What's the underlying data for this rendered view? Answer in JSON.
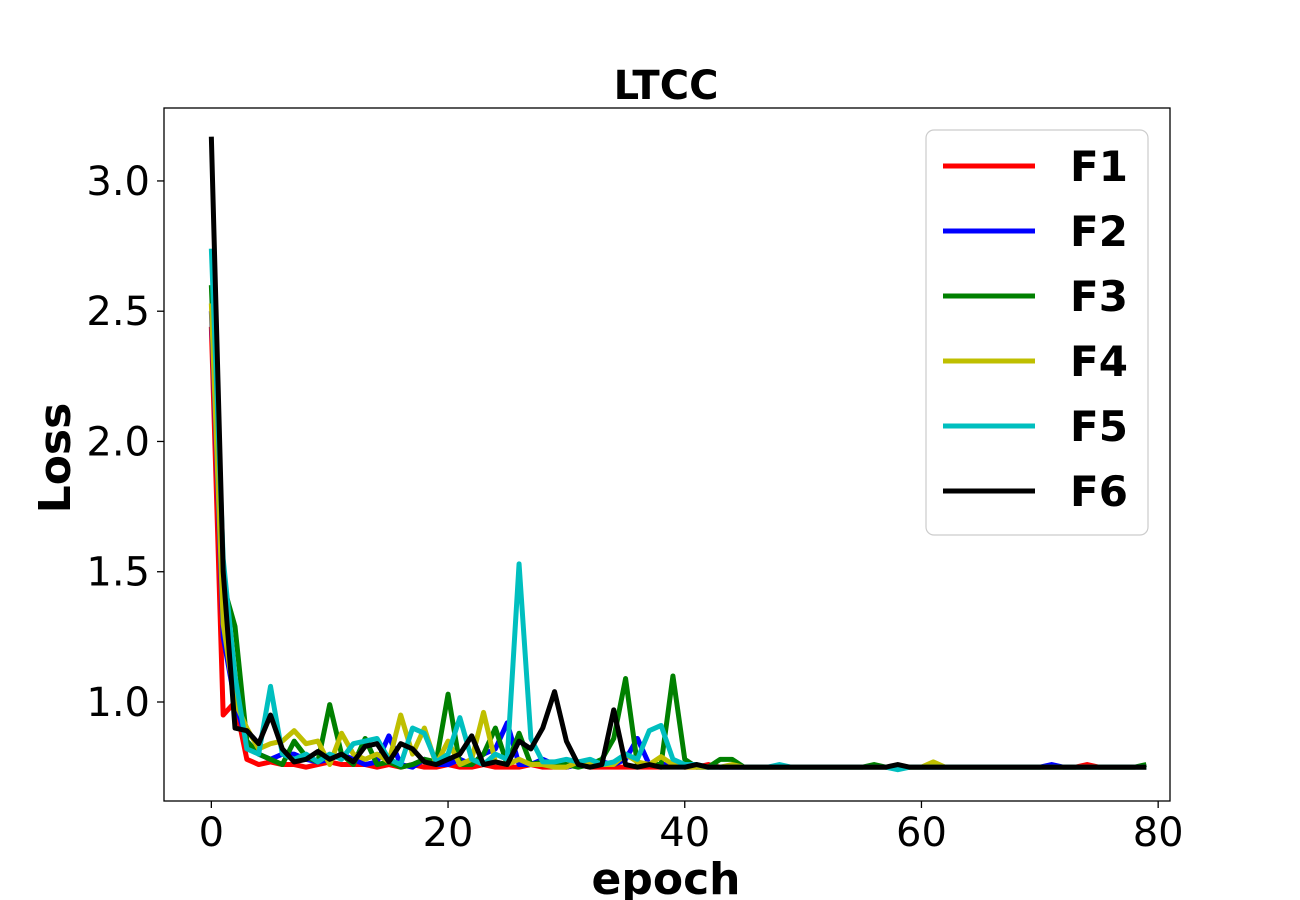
{
  "chart_data": {
    "type": "line",
    "title": "LTCC",
    "xlabel": "epoch",
    "ylabel": "Loss",
    "xlim": [
      -4,
      81
    ],
    "ylim": [
      0.62,
      3.28
    ],
    "xticks": [
      0,
      20,
      40,
      60,
      80
    ],
    "xtick_labels": [
      "0",
      "20",
      "40",
      "60",
      "80"
    ],
    "yticks": [
      1.0,
      1.5,
      2.0,
      2.5,
      3.0
    ],
    "ytick_labels": [
      "1.0",
      "1.5",
      "2.0",
      "2.5",
      "3.0"
    ],
    "grid": false,
    "legend": "top-right",
    "series": [
      {
        "name": "F1",
        "color": "#ff0000",
        "values": [
          2.44,
          0.95,
          1.0,
          0.78,
          0.76,
          0.77,
          0.76,
          0.76,
          0.75,
          0.76,
          0.77,
          0.76,
          0.76,
          0.76,
          0.75,
          0.76,
          0.75,
          0.76,
          0.75,
          0.75,
          0.76,
          0.75,
          0.75,
          0.76,
          0.75,
          0.75,
          0.75,
          0.76,
          0.75,
          0.75,
          0.75,
          0.76,
          0.75,
          0.75,
          0.75,
          0.75,
          0.75,
          0.75,
          0.75,
          0.76,
          0.75,
          0.75,
          0.76,
          0.75,
          0.75,
          0.75,
          0.75,
          0.75,
          0.75,
          0.75,
          0.75,
          0.75,
          0.75,
          0.75,
          0.75,
          0.75,
          0.75,
          0.75,
          0.75,
          0.75,
          0.75,
          0.75,
          0.75,
          0.75,
          0.75,
          0.75,
          0.75,
          0.75,
          0.75,
          0.75,
          0.75,
          0.75,
          0.75,
          0.75,
          0.76,
          0.75,
          0.75,
          0.75,
          0.75,
          0.75
        ]
      },
      {
        "name": "F2",
        "color": "#0000ff",
        "values": [
          2.5,
          1.25,
          1.0,
          0.85,
          0.8,
          0.78,
          0.8,
          0.8,
          0.78,
          0.77,
          0.78,
          0.8,
          0.78,
          0.76,
          0.77,
          0.87,
          0.76,
          0.75,
          0.78,
          0.76,
          0.76,
          0.78,
          0.76,
          0.8,
          0.82,
          0.92,
          0.76,
          0.76,
          0.78,
          0.76,
          0.75,
          0.76,
          0.76,
          0.77,
          0.76,
          0.78,
          0.86,
          0.76,
          0.76,
          0.76,
          0.76,
          0.75,
          0.75,
          0.75,
          0.75,
          0.75,
          0.75,
          0.75,
          0.75,
          0.75,
          0.75,
          0.75,
          0.75,
          0.75,
          0.75,
          0.75,
          0.75,
          0.75,
          0.75,
          0.75,
          0.75,
          0.75,
          0.75,
          0.75,
          0.75,
          0.75,
          0.75,
          0.75,
          0.75,
          0.75,
          0.75,
          0.76,
          0.75,
          0.75,
          0.75,
          0.75,
          0.75,
          0.75,
          0.75,
          0.75
        ]
      },
      {
        "name": "F3",
        "color": "#008000",
        "values": [
          2.6,
          1.45,
          1.29,
          0.85,
          0.8,
          0.78,
          0.76,
          0.85,
          0.79,
          0.77,
          0.99,
          0.8,
          0.76,
          0.86,
          0.76,
          0.77,
          0.75,
          0.76,
          0.78,
          0.77,
          1.03,
          0.76,
          0.76,
          0.8,
          0.9,
          0.76,
          0.88,
          0.76,
          0.77,
          0.76,
          0.76,
          0.75,
          0.76,
          0.78,
          0.86,
          1.09,
          0.76,
          0.76,
          0.76,
          1.1,
          0.78,
          0.75,
          0.75,
          0.78,
          0.78,
          0.75,
          0.75,
          0.75,
          0.75,
          0.75,
          0.75,
          0.75,
          0.75,
          0.75,
          0.75,
          0.75,
          0.76,
          0.75,
          0.75,
          0.75,
          0.75,
          0.75,
          0.75,
          0.75,
          0.75,
          0.75,
          0.75,
          0.75,
          0.75,
          0.75,
          0.75,
          0.75,
          0.75,
          0.75,
          0.75,
          0.75,
          0.75,
          0.75,
          0.75,
          0.76
        ]
      },
      {
        "name": "F4",
        "color": "#bfbf00",
        "values": [
          2.53,
          1.3,
          1.0,
          0.9,
          0.82,
          0.84,
          0.85,
          0.89,
          0.84,
          0.85,
          0.76,
          0.88,
          0.8,
          0.78,
          0.8,
          0.77,
          0.95,
          0.8,
          0.9,
          0.76,
          0.85,
          0.76,
          0.78,
          0.96,
          0.77,
          0.76,
          0.78,
          0.76,
          0.76,
          0.75,
          0.75,
          0.77,
          0.76,
          0.76,
          0.76,
          0.8,
          0.77,
          0.76,
          0.79,
          0.76,
          0.75,
          0.75,
          0.75,
          0.75,
          0.76,
          0.75,
          0.75,
          0.75,
          0.75,
          0.75,
          0.75,
          0.75,
          0.75,
          0.75,
          0.75,
          0.75,
          0.75,
          0.75,
          0.75,
          0.75,
          0.75,
          0.77,
          0.75,
          0.75,
          0.75,
          0.75,
          0.75,
          0.75,
          0.75,
          0.75,
          0.75,
          0.75,
          0.75,
          0.75,
          0.75,
          0.75,
          0.75,
          0.75,
          0.75,
          0.75
        ]
      },
      {
        "name": "F5",
        "color": "#00bfbf",
        "values": [
          2.74,
          1.55,
          1.1,
          0.82,
          0.8,
          1.06,
          0.8,
          0.78,
          0.8,
          0.77,
          0.8,
          0.78,
          0.84,
          0.85,
          0.86,
          0.78,
          0.76,
          0.9,
          0.88,
          0.77,
          0.8,
          0.94,
          0.78,
          0.76,
          0.8,
          0.78,
          1.53,
          0.86,
          0.77,
          0.77,
          0.78,
          0.77,
          0.78,
          0.76,
          0.77,
          0.8,
          0.78,
          0.89,
          0.91,
          0.78,
          0.76,
          0.76,
          0.75,
          0.75,
          0.75,
          0.75,
          0.75,
          0.75,
          0.76,
          0.75,
          0.75,
          0.75,
          0.75,
          0.75,
          0.75,
          0.75,
          0.75,
          0.75,
          0.74,
          0.75,
          0.75,
          0.75,
          0.75,
          0.75,
          0.75,
          0.75,
          0.75,
          0.75,
          0.75,
          0.75,
          0.75,
          0.75,
          0.75,
          0.75,
          0.75,
          0.75,
          0.75,
          0.75,
          0.75,
          0.75
        ]
      },
      {
        "name": "F6",
        "color": "#000000",
        "values": [
          3.17,
          1.5,
          0.9,
          0.89,
          0.84,
          0.95,
          0.82,
          0.77,
          0.78,
          0.81,
          0.78,
          0.8,
          0.77,
          0.83,
          0.84,
          0.77,
          0.84,
          0.82,
          0.77,
          0.76,
          0.78,
          0.8,
          0.87,
          0.76,
          0.77,
          0.76,
          0.85,
          0.82,
          0.9,
          1.04,
          0.85,
          0.76,
          0.75,
          0.76,
          0.97,
          0.76,
          0.75,
          0.76,
          0.75,
          0.75,
          0.75,
          0.76,
          0.75,
          0.75,
          0.75,
          0.75,
          0.75,
          0.75,
          0.75,
          0.75,
          0.75,
          0.75,
          0.75,
          0.75,
          0.75,
          0.75,
          0.75,
          0.75,
          0.76,
          0.75,
          0.75,
          0.75,
          0.75,
          0.75,
          0.75,
          0.75,
          0.75,
          0.75,
          0.75,
          0.75,
          0.75,
          0.75,
          0.75,
          0.75,
          0.75,
          0.75,
          0.75,
          0.75,
          0.75,
          0.75
        ]
      }
    ]
  }
}
